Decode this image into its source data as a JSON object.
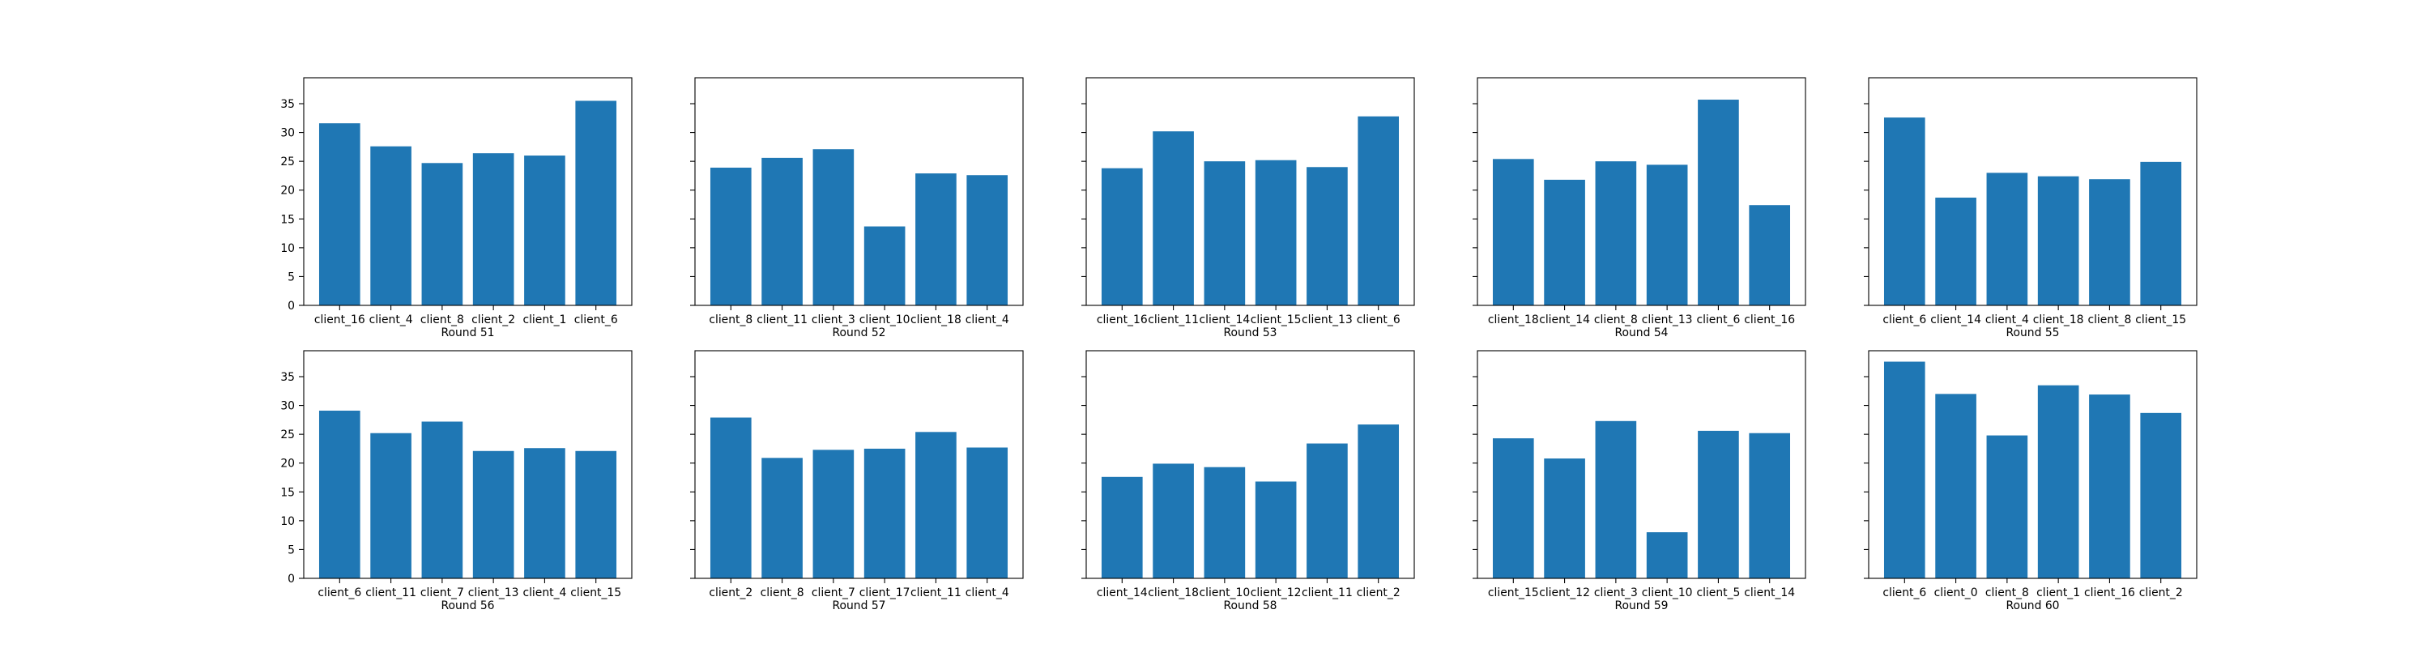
{
  "figure": {
    "background": "#ffffff",
    "bar_color": "#1f77b4"
  },
  "chart_data": [
    {
      "type": "bar",
      "xlabel": "Round 51",
      "categories": [
        "client_16",
        "client_4",
        "client_8",
        "client_2",
        "client_1",
        "client_6"
      ],
      "values": [
        31.6,
        27.6,
        24.7,
        26.4,
        26.0,
        35.5
      ],
      "ylim": [
        0,
        39.5
      ],
      "yticks": [
        0,
        5,
        10,
        15,
        20,
        25,
        30,
        35
      ],
      "show_ytick_labels": true
    },
    {
      "type": "bar",
      "xlabel": "Round 52",
      "categories": [
        "client_8",
        "client_11",
        "client_3",
        "client_10",
        "client_18",
        "client_4"
      ],
      "values": [
        23.9,
        25.6,
        27.1,
        13.7,
        22.9,
        22.6
      ],
      "ylim": [
        0,
        39.5
      ],
      "yticks": [
        0,
        5,
        10,
        15,
        20,
        25,
        30,
        35
      ],
      "show_ytick_labels": false
    },
    {
      "type": "bar",
      "xlabel": "Round 53",
      "categories": [
        "client_16",
        "client_11",
        "client_14",
        "client_15",
        "client_13",
        "client_6"
      ],
      "values": [
        23.8,
        30.2,
        25.0,
        25.2,
        24.0,
        32.8
      ],
      "ylim": [
        0,
        39.5
      ],
      "yticks": [
        0,
        5,
        10,
        15,
        20,
        25,
        30,
        35
      ],
      "show_ytick_labels": false
    },
    {
      "type": "bar",
      "xlabel": "Round 54",
      "categories": [
        "client_18",
        "client_14",
        "client_8",
        "client_13",
        "client_6",
        "client_16"
      ],
      "values": [
        25.4,
        21.8,
        25.0,
        24.4,
        35.7,
        17.4
      ],
      "ylim": [
        0,
        39.5
      ],
      "yticks": [
        0,
        5,
        10,
        15,
        20,
        25,
        30,
        35
      ],
      "show_ytick_labels": false
    },
    {
      "type": "bar",
      "xlabel": "Round 55",
      "categories": [
        "client_6",
        "client_14",
        "client_4",
        "client_18",
        "client_8",
        "client_15"
      ],
      "values": [
        32.6,
        18.7,
        23.0,
        22.4,
        21.9,
        24.9
      ],
      "ylim": [
        0,
        39.5
      ],
      "yticks": [
        0,
        5,
        10,
        15,
        20,
        25,
        30,
        35
      ],
      "show_ytick_labels": false
    },
    {
      "type": "bar",
      "xlabel": "Round 56",
      "categories": [
        "client_6",
        "client_11",
        "client_7",
        "client_13",
        "client_4",
        "client_15"
      ],
      "values": [
        29.1,
        25.2,
        27.2,
        22.1,
        22.6,
        22.1
      ],
      "ylim": [
        0,
        39.5
      ],
      "yticks": [
        0,
        5,
        10,
        15,
        20,
        25,
        30,
        35
      ],
      "show_ytick_labels": true
    },
    {
      "type": "bar",
      "xlabel": "Round 57",
      "categories": [
        "client_2",
        "client_8",
        "client_7",
        "client_17",
        "client_11",
        "client_4"
      ],
      "values": [
        27.9,
        20.9,
        22.3,
        22.5,
        25.4,
        22.7
      ],
      "ylim": [
        0,
        39.5
      ],
      "yticks": [
        0,
        5,
        10,
        15,
        20,
        25,
        30,
        35
      ],
      "show_ytick_labels": false
    },
    {
      "type": "bar",
      "xlabel": "Round 58",
      "categories": [
        "client_14",
        "client_18",
        "client_10",
        "client_12",
        "client_11",
        "client_2"
      ],
      "values": [
        17.6,
        19.9,
        19.3,
        16.8,
        23.4,
        26.7
      ],
      "ylim": [
        0,
        39.5
      ],
      "yticks": [
        0,
        5,
        10,
        15,
        20,
        25,
        30,
        35
      ],
      "show_ytick_labels": false
    },
    {
      "type": "bar",
      "xlabel": "Round 59",
      "categories": [
        "client_15",
        "client_12",
        "client_3",
        "client_10",
        "client_5",
        "client_14"
      ],
      "values": [
        24.3,
        20.8,
        27.3,
        8.0,
        25.6,
        25.2
      ],
      "ylim": [
        0,
        39.5
      ],
      "yticks": [
        0,
        5,
        10,
        15,
        20,
        25,
        30,
        35
      ],
      "show_ytick_labels": false
    },
    {
      "type": "bar",
      "xlabel": "Round 60",
      "categories": [
        "client_6",
        "client_0",
        "client_8",
        "client_1",
        "client_16",
        "client_2"
      ],
      "values": [
        37.6,
        32.0,
        24.8,
        33.5,
        31.9,
        28.7
      ],
      "ylim": [
        0,
        39.5
      ],
      "yticks": [
        0,
        5,
        10,
        15,
        20,
        25,
        30,
        35
      ],
      "show_ytick_labels": false
    }
  ]
}
